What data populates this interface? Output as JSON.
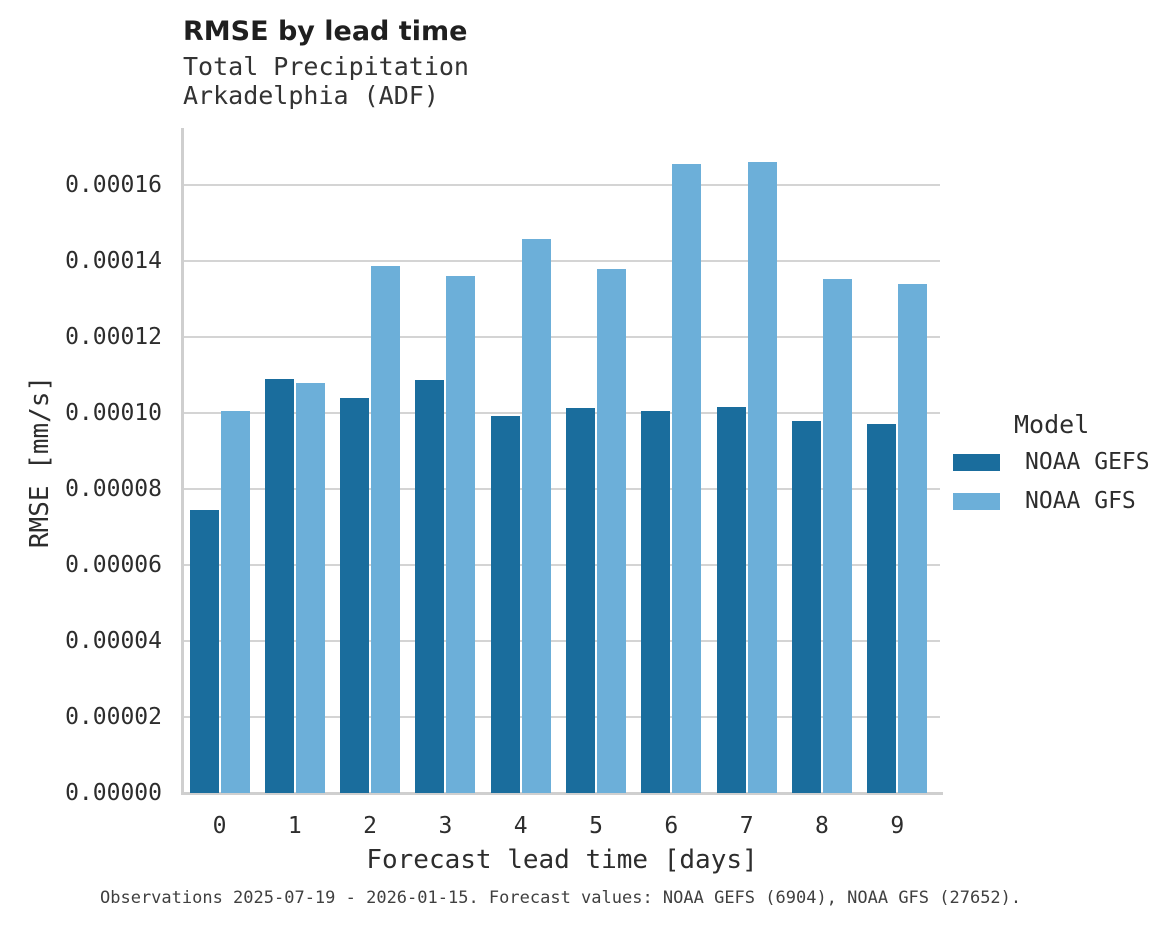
{
  "chart_data": {
    "type": "bar",
    "title": "RMSE by lead time",
    "subtitle": [
      "Total Precipitation",
      "Arkadelphia (ADF)"
    ],
    "xlabel": "Forecast lead time [days]",
    "ylabel": "RMSE [mm/s]",
    "categories": [
      "0",
      "1",
      "2",
      "3",
      "4",
      "5",
      "6",
      "7",
      "8",
      "9"
    ],
    "series": [
      {
        "name": "NOAA GEFS",
        "color": "#1a6d9d",
        "values": [
          7.45e-05,
          0.000109,
          0.000104,
          0.0001086,
          9.91e-05,
          0.0001012,
          0.0001005,
          0.0001015,
          9.78e-05,
          9.71e-05
        ]
      },
      {
        "name": "NOAA GFS",
        "color": "#6cafd9",
        "values": [
          0.0001006,
          0.0001078,
          0.0001388,
          0.000136,
          0.0001459,
          0.0001378,
          0.0001655,
          0.0001661,
          0.0001353,
          0.000134
        ]
      }
    ],
    "ylim": [
      0,
      0.000175
    ],
    "ytick_values": [
      0.0,
      2e-05,
      4e-05,
      6e-05,
      8e-05,
      0.0001,
      0.00012,
      0.00014,
      0.00016
    ],
    "ytick_labels": [
      "0.00000",
      "0.00002",
      "0.00004",
      "0.00006",
      "0.00008",
      "0.00010",
      "0.00012",
      "0.00014",
      "0.00016"
    ],
    "grid": "horizontal",
    "legend_title": "Model",
    "legend_position": "right",
    "caption": "Observations 2025-07-19 - 2026-01-15. Forecast values: NOAA GEFS (6904), NOAA GFS (27652)."
  }
}
